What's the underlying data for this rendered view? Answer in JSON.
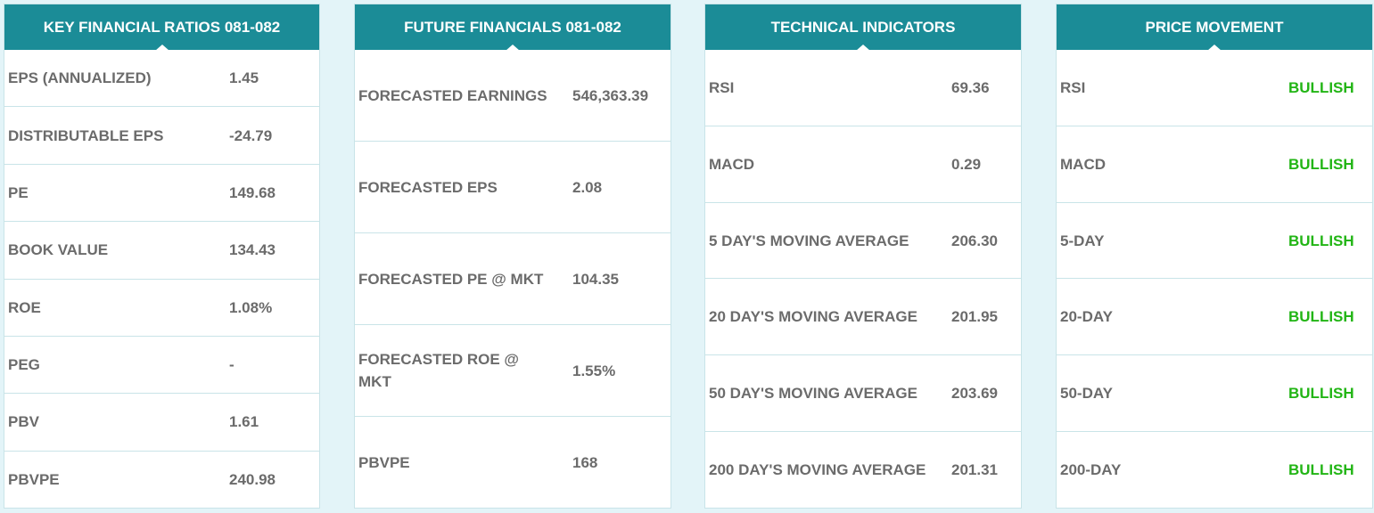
{
  "key_ratios": {
    "title": "KEY FINANCIAL RATIOS 081-082",
    "rows": [
      {
        "label": "EPS (ANNUALIZED)",
        "value": "1.45"
      },
      {
        "label": "DISTRIBUTABLE EPS",
        "value": "-24.79"
      },
      {
        "label": "PE",
        "value": "149.68"
      },
      {
        "label": "BOOK VALUE",
        "value": "134.43"
      },
      {
        "label": "ROE",
        "value": "1.08%"
      },
      {
        "label": "PEG",
        "value": "-"
      },
      {
        "label": "PBV",
        "value": "1.61"
      },
      {
        "label": "PBVPE",
        "value": "240.98"
      }
    ]
  },
  "future_financials": {
    "title": "FUTURE FINANCIALS 081-082",
    "rows": [
      {
        "label": "FORECASTED EARNINGS",
        "value": "546,363.39"
      },
      {
        "label": "FORECASTED EPS",
        "value": "2.08"
      },
      {
        "label": "FORECASTED PE @ MKT",
        "value": "104.35"
      },
      {
        "label": "FORECASTED ROE @ MKT",
        "value": "1.55%"
      },
      {
        "label": "PBVPE",
        "value": "168"
      }
    ]
  },
  "technical_indicators": {
    "title": "TECHNICAL INDICATORS",
    "rows": [
      {
        "label": "RSI",
        "value": "69.36"
      },
      {
        "label": "MACD",
        "value": "0.29"
      },
      {
        "label": "5 DAY'S MOVING AVERAGE",
        "value": "206.30"
      },
      {
        "label": "20 DAY'S MOVING AVERAGE",
        "value": "201.95"
      },
      {
        "label": "50 DAY'S MOVING AVERAGE",
        "value": "203.69"
      },
      {
        "label": "200 DAY'S MOVING AVERAGE",
        "value": "201.31"
      }
    ]
  },
  "price_movement": {
    "title": "PRICE MOVEMENT",
    "rows": [
      {
        "label": "RSI",
        "value": "BULLISH"
      },
      {
        "label": "MACD",
        "value": "BULLISH"
      },
      {
        "label": "5-DAY",
        "value": "BULLISH"
      },
      {
        "label": "20-DAY",
        "value": "BULLISH"
      },
      {
        "label": "50-DAY",
        "value": "BULLISH"
      },
      {
        "label": "200-DAY",
        "value": "BULLISH"
      }
    ]
  },
  "colors": {
    "header": "#1b8c97",
    "bullish": "#22b515",
    "text": "#6b6b6b"
  }
}
